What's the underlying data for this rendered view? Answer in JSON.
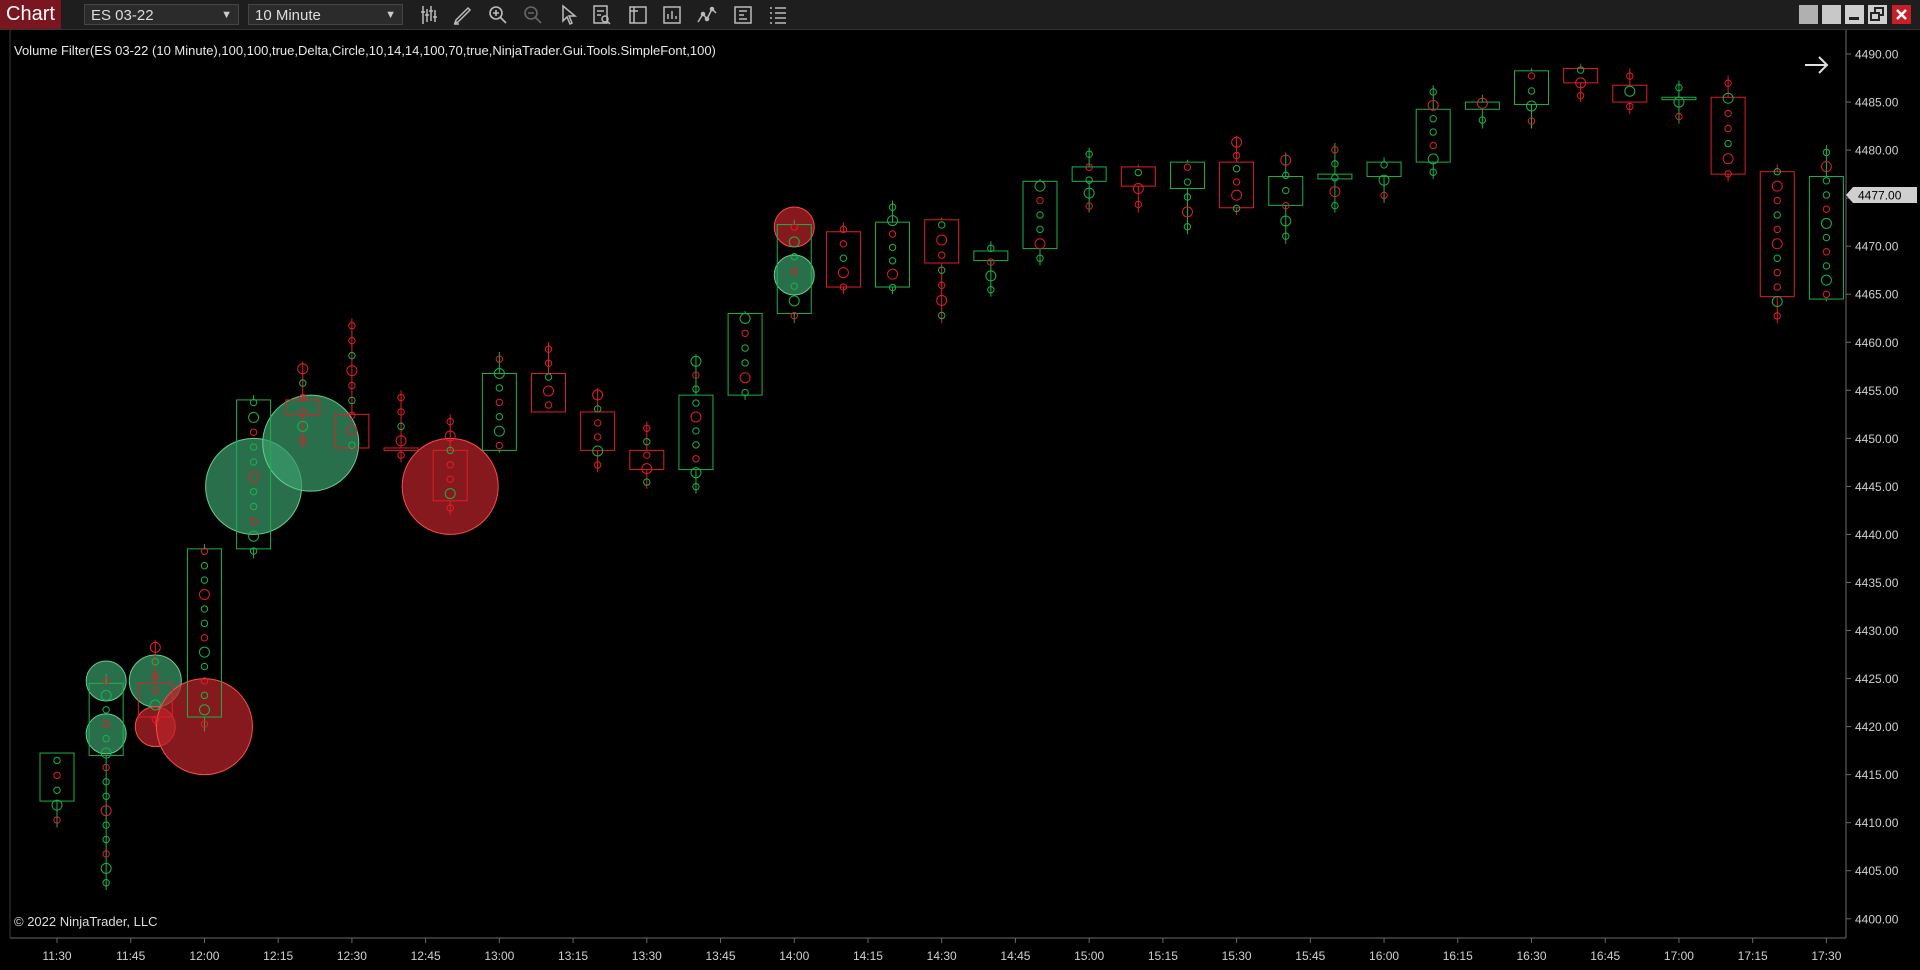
{
  "toolbar": {
    "tab_label": "Chart",
    "instrument": "ES 03-22",
    "interval": "10 Minute",
    "icons": [
      "bar-type-icon",
      "drawing-pencil-icon",
      "zoom-in-icon",
      "zoom-out-icon",
      "pointer-icon",
      "data-box-icon",
      "templates-icon",
      "indicators-icon",
      "strategies-icon",
      "properties-icon",
      "object-list-icon"
    ],
    "window_buttons": [
      "minimize",
      "minimize",
      "restore",
      "close"
    ]
  },
  "chart": {
    "indicator_label": "Volume Filter(ES 03-22 (10 Minute),100,100,true,Delta,Circle,10,14,14,100,70,true,NinjaTrader.Gui.Tools.SimpleFont,100)",
    "copyright": "© 2022 NinjaTrader, LLC",
    "last_price": "4477.00",
    "nav_arrow": "right-arrow-icon",
    "colors": {
      "up": "#19b24a",
      "down": "#e01e28",
      "up_fill": "#3a9a6a",
      "down_fill": "#b82228",
      "axis_text": "#d0d0d0"
    }
  },
  "chart_data": {
    "type": "candlestick",
    "x_tick_labels": [
      "11:30",
      "11:45",
      "12:00",
      "12:15",
      "12:30",
      "12:45",
      "13:00",
      "13:15",
      "13:30",
      "13:45",
      "14:00",
      "14:15",
      "14:30",
      "14:45",
      "15:00",
      "15:15",
      "15:30",
      "15:45",
      "16:00",
      "16:15",
      "16:30",
      "16:45",
      "17:00",
      "17:15",
      "17:30"
    ],
    "y_tick_labels": [
      "4490.00",
      "4485.00",
      "4480.00",
      "4475.00",
      "4470.00",
      "4465.00",
      "4460.00",
      "4455.00",
      "4450.00",
      "4445.00",
      "4440.00",
      "4435.00",
      "4430.00",
      "4425.00",
      "4420.00",
      "4415.00",
      "4410.00",
      "4405.00",
      "4400.00"
    ],
    "ylim": [
      4398,
      4492.5
    ],
    "bar_interval": "10 Minute",
    "candles": [
      {
        "t": "11:30",
        "o": 4412.25,
        "h": 4417.25,
        "l": 4409.5,
        "c": 4417.25
      },
      {
        "t": "11:40",
        "o": 4417.0,
        "h": 4425.5,
        "l": 4403.0,
        "c": 4424.5
      },
      {
        "t": "11:50",
        "o": 4424.5,
        "h": 4429.0,
        "l": 4420.0,
        "c": 4421.0
      },
      {
        "t": "12:00",
        "o": 4421.0,
        "h": 4439.0,
        "l": 4419.5,
        "c": 4438.5
      },
      {
        "t": "12:10",
        "o": 4438.5,
        "h": 4454.5,
        "l": 4437.5,
        "c": 4454.0
      },
      {
        "t": "12:20",
        "o": 4454.0,
        "h": 4458.0,
        "l": 4449.0,
        "c": 4452.5
      },
      {
        "t": "12:30",
        "o": 4452.5,
        "h": 4462.5,
        "l": 4448.5,
        "c": 4449.0
      },
      {
        "t": "12:40",
        "o": 4449.0,
        "h": 4455.0,
        "l": 4447.5,
        "c": 4448.75
      },
      {
        "t": "12:50",
        "o": 4448.75,
        "h": 4452.5,
        "l": 4442.0,
        "c": 4443.5
      },
      {
        "t": "13:00",
        "o": 4448.75,
        "h": 4459.0,
        "l": 4448.5,
        "c": 4456.75
      },
      {
        "t": "13:10",
        "o": 4456.75,
        "h": 4460.0,
        "l": 4452.75,
        "c": 4452.75
      },
      {
        "t": "13:20",
        "o": 4452.75,
        "h": 4455.25,
        "l": 4446.5,
        "c": 4448.75
      },
      {
        "t": "13:30",
        "o": 4448.75,
        "h": 4451.75,
        "l": 4444.75,
        "c": 4446.75
      },
      {
        "t": "13:40",
        "o": 4446.75,
        "h": 4458.75,
        "l": 4444.25,
        "c": 4454.5
      },
      {
        "t": "13:50",
        "o": 4454.5,
        "h": 4463.25,
        "l": 4454.0,
        "c": 4463.0
      },
      {
        "t": "14:00",
        "o": 4463.0,
        "h": 4472.75,
        "l": 4462.0,
        "c": 4472.25
      },
      {
        "t": "14:10",
        "o": 4471.5,
        "h": 4472.5,
        "l": 4465.0,
        "c": 4465.75
      },
      {
        "t": "14:20",
        "o": 4465.75,
        "h": 4474.75,
        "l": 4465.0,
        "c": 4472.5
      },
      {
        "t": "14:30",
        "o": 4472.75,
        "h": 4473.0,
        "l": 4462.0,
        "c": 4468.25
      },
      {
        "t": "14:40",
        "o": 4468.5,
        "h": 4470.5,
        "l": 4464.75,
        "c": 4469.5
      },
      {
        "t": "14:50",
        "o": 4469.75,
        "h": 4477.0,
        "l": 4468.0,
        "c": 4476.75
      },
      {
        "t": "15:00",
        "o": 4476.75,
        "h": 4480.25,
        "l": 4473.5,
        "c": 4478.25
      },
      {
        "t": "15:10",
        "o": 4478.25,
        "h": 4478.5,
        "l": 4473.5,
        "c": 4476.25
      },
      {
        "t": "15:20",
        "o": 4476.0,
        "h": 4479.0,
        "l": 4471.25,
        "c": 4478.75
      },
      {
        "t": "15:30",
        "o": 4478.75,
        "h": 4481.5,
        "l": 4473.25,
        "c": 4474.0
      },
      {
        "t": "15:40",
        "o": 4474.25,
        "h": 4479.75,
        "l": 4470.25,
        "c": 4477.25
      },
      {
        "t": "15:50",
        "o": 4477.0,
        "h": 4480.75,
        "l": 4473.5,
        "c": 4477.5
      },
      {
        "t": "16:00",
        "o": 4477.25,
        "h": 4479.25,
        "l": 4474.5,
        "c": 4478.75
      },
      {
        "t": "16:10",
        "o": 4478.75,
        "h": 4486.75,
        "l": 4477.0,
        "c": 4484.25
      },
      {
        "t": "16:20",
        "o": 4484.25,
        "h": 4485.75,
        "l": 4482.25,
        "c": 4485.0
      },
      {
        "t": "16:30",
        "o": 4484.75,
        "h": 4488.5,
        "l": 4482.25,
        "c": 4488.25
      },
      {
        "t": "16:40",
        "o": 4488.5,
        "h": 4489.0,
        "l": 4485.0,
        "c": 4487.0
      },
      {
        "t": "16:50",
        "o": 4486.75,
        "h": 4488.5,
        "l": 4483.75,
        "c": 4485.0
      },
      {
        "t": "17:00",
        "o": 4485.25,
        "h": 4487.25,
        "l": 4482.75,
        "c": 4485.5
      },
      {
        "t": "17:10",
        "o": 4485.5,
        "h": 4487.75,
        "l": 4476.75,
        "c": 4477.5
      },
      {
        "t": "17:20",
        "o": 4477.75,
        "h": 4478.5,
        "l": 4462.0,
        "c": 4464.75
      },
      {
        "t": "17:30",
        "o": 4464.5,
        "h": 4480.5,
        "l": 4464.25,
        "c": 4477.25
      }
    ],
    "volume_filter_circles": [
      {
        "bar": 2,
        "price": 4424.75,
        "size": "medium",
        "side": "buy"
      },
      {
        "bar": 2,
        "price": 4420.0,
        "size": "small",
        "side": "sell"
      },
      {
        "bar": 3,
        "price": 4420.0,
        "size": "large",
        "side": "sell"
      },
      {
        "bar": 4,
        "price": 4445.0,
        "size": "large",
        "side": "buy"
      },
      {
        "bar": 5,
        "price": 4449.5,
        "size": "large",
        "side": "buy"
      },
      {
        "bar": 8,
        "price": 4445.0,
        "size": "large",
        "side": "sell"
      },
      {
        "bar": 1,
        "price": 4424.75,
        "size": "small",
        "side": "buy"
      },
      {
        "bar": 1,
        "price": 4419.25,
        "size": "small",
        "side": "buy"
      },
      {
        "bar": 15,
        "price": 4467.0,
        "size": "small",
        "side": "buy"
      },
      {
        "bar": 15,
        "price": 4472.0,
        "size": "small",
        "side": "sell"
      }
    ]
  }
}
